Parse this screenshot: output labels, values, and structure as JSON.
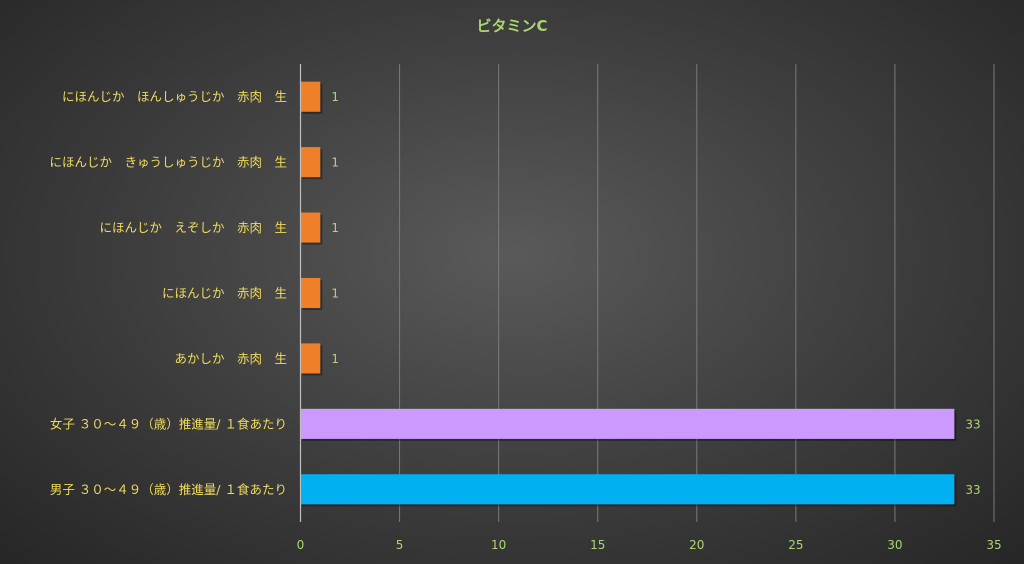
{
  "chart_data": {
    "type": "bar",
    "orientation": "horizontal",
    "title": "ビタミンC",
    "categories": [
      "にほんじか　ほんしゅうじか　赤肉　生",
      "にほんじか　きゅうしゅうじか　赤肉　生",
      "にほんじか　えぞしか　赤肉　生",
      "にほんじか　赤肉　生",
      "あかしか　赤肉　生",
      "女子 ３０～４９（歳）推進量/ １食あたり",
      "男子 ３０～４９（歳）推進量/ １食あたり"
    ],
    "values": [
      1,
      1,
      1,
      1,
      1,
      33,
      33
    ],
    "data_labels": [
      "1",
      "1",
      "1",
      "1",
      "1",
      "33",
      "33"
    ],
    "bar_colors": [
      "#f07f2a",
      "#f07f2a",
      "#f07f2a",
      "#f07f2a",
      "#f07f2a",
      "#cc99ff",
      "#00b0f0"
    ],
    "xlim": [
      0,
      35
    ],
    "xticks": [
      0,
      5,
      10,
      15,
      20,
      25,
      30,
      35
    ],
    "xlabel": "",
    "ylabel": "",
    "grid": true,
    "legend": "none"
  }
}
